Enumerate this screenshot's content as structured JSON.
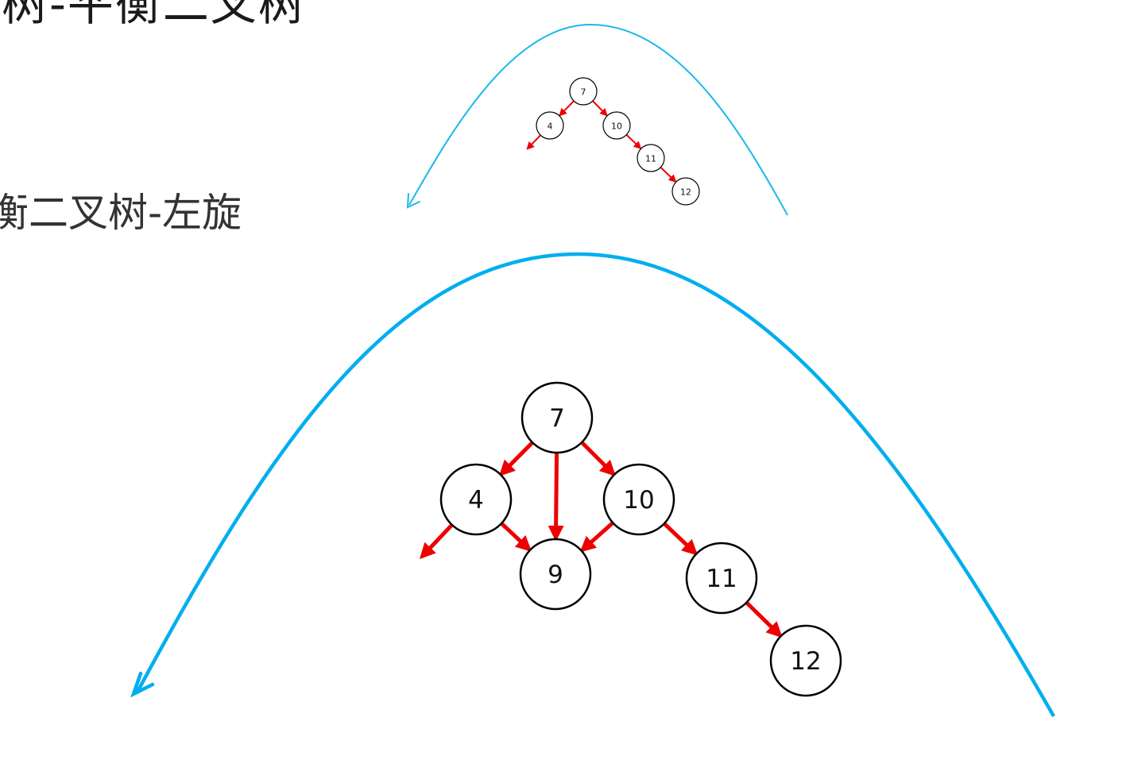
{
  "heading": {
    "main": "树-平衡二叉树",
    "sub": "衡二叉树-左旋"
  },
  "colors": {
    "arc_small": "#1ab8ec",
    "arc_large": "#00aeef",
    "edge": "#ee0000",
    "node_stroke": "#000000"
  },
  "small_tree": {
    "nodes": [
      {
        "id": "s7",
        "label": "7"
      },
      {
        "id": "s4",
        "label": "4"
      },
      {
        "id": "s10",
        "label": "10"
      },
      {
        "id": "s11",
        "label": "11"
      },
      {
        "id": "s12",
        "label": "12"
      }
    ],
    "edges": [
      {
        "from": "s7",
        "to": "s4"
      },
      {
        "from": "s7",
        "to": "s10"
      },
      {
        "from": "s10",
        "to": "s11"
      },
      {
        "from": "s11",
        "to": "s12"
      },
      {
        "from": "s4",
        "to": "left-null"
      }
    ]
  },
  "large_tree": {
    "nodes": [
      {
        "id": "l7",
        "label": "7"
      },
      {
        "id": "l4",
        "label": "4"
      },
      {
        "id": "l10",
        "label": "10"
      },
      {
        "id": "l9",
        "label": "9"
      },
      {
        "id": "l11",
        "label": "11"
      },
      {
        "id": "l12",
        "label": "12"
      }
    ],
    "edges": [
      {
        "from": "l7",
        "to": "l4"
      },
      {
        "from": "l7",
        "to": "l10"
      },
      {
        "from": "l7",
        "to": "l9"
      },
      {
        "from": "l4",
        "to": "l9"
      },
      {
        "from": "l10",
        "to": "l9"
      },
      {
        "from": "l10",
        "to": "l11"
      },
      {
        "from": "l11",
        "to": "l12"
      },
      {
        "from": "l4",
        "to": "left-null"
      }
    ]
  }
}
